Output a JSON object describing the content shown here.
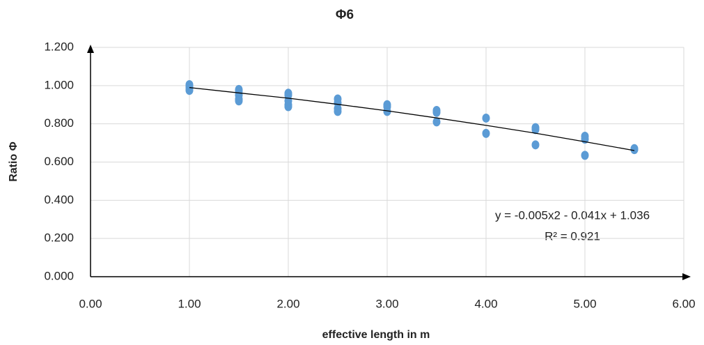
{
  "chart_data": {
    "type": "scatter",
    "title": "Φ6",
    "x_label": "effective length in m",
    "y_label": "Ratio Φ",
    "color": "#5b9bd5",
    "x": [
      1.0,
      1.0,
      1.0,
      1.0,
      1.0,
      1.5,
      1.5,
      1.5,
      1.5,
      1.5,
      2.0,
      2.0,
      2.0,
      2.0,
      2.0,
      2.5,
      2.5,
      2.5,
      2.5,
      3.0,
      3.0,
      3.0,
      3.5,
      3.5,
      3.5,
      4.0,
      4.0,
      4.5,
      4.5,
      4.5,
      5.0,
      5.0,
      5.0,
      5.5,
      5.5
    ],
    "values": [
      1.005,
      1.0,
      0.99,
      0.98,
      0.975,
      0.98,
      0.97,
      0.95,
      0.93,
      0.92,
      0.96,
      0.95,
      0.92,
      0.9,
      0.89,
      0.93,
      0.91,
      0.88,
      0.865,
      0.9,
      0.89,
      0.865,
      0.87,
      0.86,
      0.81,
      0.83,
      0.75,
      0.78,
      0.77,
      0.69,
      0.735,
      0.72,
      0.635,
      0.67,
      0.665
    ],
    "trendline": {
      "x": [
        1.0,
        1.5,
        2.0,
        2.5,
        3.0,
        3.5,
        4.0,
        4.5,
        5.0,
        5.5
      ],
      "values": [
        0.99,
        0.962,
        0.934,
        0.902,
        0.868,
        0.831,
        0.792,
        0.751,
        0.706,
        0.66
      ],
      "color": "#000000"
    },
    "annotations": [
      "y = -0.005x2 - 0.041x + 1.036",
      "R² = 0.921"
    ],
    "xlim": [
      0,
      6
    ],
    "xticks": [
      {
        "value": 0,
        "label": "0.00"
      },
      {
        "value": 1,
        "label": "1.00"
      },
      {
        "value": 2,
        "label": "2.00"
      },
      {
        "value": 3,
        "label": "3.00"
      },
      {
        "value": 4,
        "label": "4.00"
      },
      {
        "value": 5,
        "label": "5.00"
      },
      {
        "value": 6,
        "label": "6.00"
      }
    ],
    "ylim": [
      0,
      1.2
    ],
    "yticks": [
      {
        "value": 0,
        "label": "0.000"
      },
      {
        "value": 0.2,
        "label": "0.200"
      },
      {
        "value": 0.4,
        "label": "0.400"
      },
      {
        "value": 0.6,
        "label": "0.600"
      },
      {
        "value": 0.8,
        "label": "0.800"
      },
      {
        "value": 1.0,
        "label": "1.000"
      },
      {
        "value": 1.2,
        "label": "1.200"
      }
    ],
    "grid": true
  }
}
